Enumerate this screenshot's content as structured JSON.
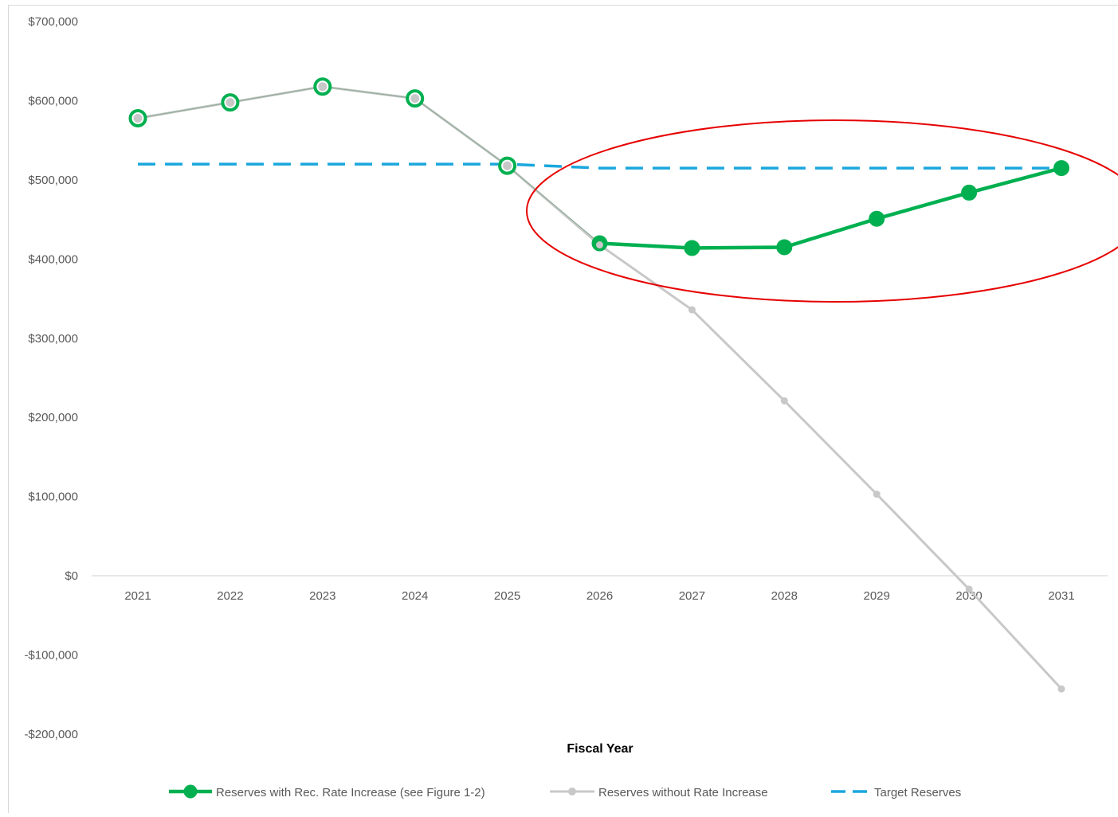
{
  "chart_data": {
    "type": "line",
    "title": "",
    "xlabel": "Fiscal Year",
    "ylabel": "",
    "categories": [
      "2021",
      "2022",
      "2023",
      "2024",
      "2025",
      "2026",
      "2027",
      "2028",
      "2029",
      "2030",
      "2031"
    ],
    "ylim": [
      -200000,
      700000
    ],
    "yticks": [
      -200000,
      -100000,
      0,
      100000,
      200000,
      300000,
      400000,
      500000,
      600000,
      700000
    ],
    "ytick_labels": [
      "-$200,000",
      "-$100,000",
      "$0",
      "$100,000",
      "$200,000",
      "$300,000",
      "$400,000",
      "$500,000",
      "$600,000",
      "$700,000"
    ],
    "grid": false,
    "legend_position": "bottom",
    "series": [
      {
        "name": "Reserves without Rate Increase",
        "color": "#c8c8c8",
        "style": "solid-small-markers",
        "values": [
          578000,
          598000,
          618000,
          603000,
          518000,
          418000,
          336000,
          221000,
          103000,
          -17000,
          -143000
        ]
      },
      {
        "name": "Reserves with Rec. Rate Increase (see Figure 1-2)",
        "color": "#00b050",
        "style": "solid-large-markers",
        "values": [
          578000,
          598000,
          618000,
          603000,
          518000,
          420000,
          414000,
          415000,
          451000,
          484000,
          515000
        ]
      },
      {
        "name": "Target Reserves",
        "color": "#1aa7dd",
        "style": "dashed",
        "values": [
          520000,
          520000,
          520000,
          520000,
          520000,
          515000,
          515000,
          515000,
          515000,
          515000,
          515000
        ]
      }
    ],
    "legend_order": [
      1,
      0,
      2
    ],
    "annotation": {
      "shape": "ellipse",
      "color": "#e60000",
      "center_x": "2028.5",
      "center_y": 467000
    }
  }
}
